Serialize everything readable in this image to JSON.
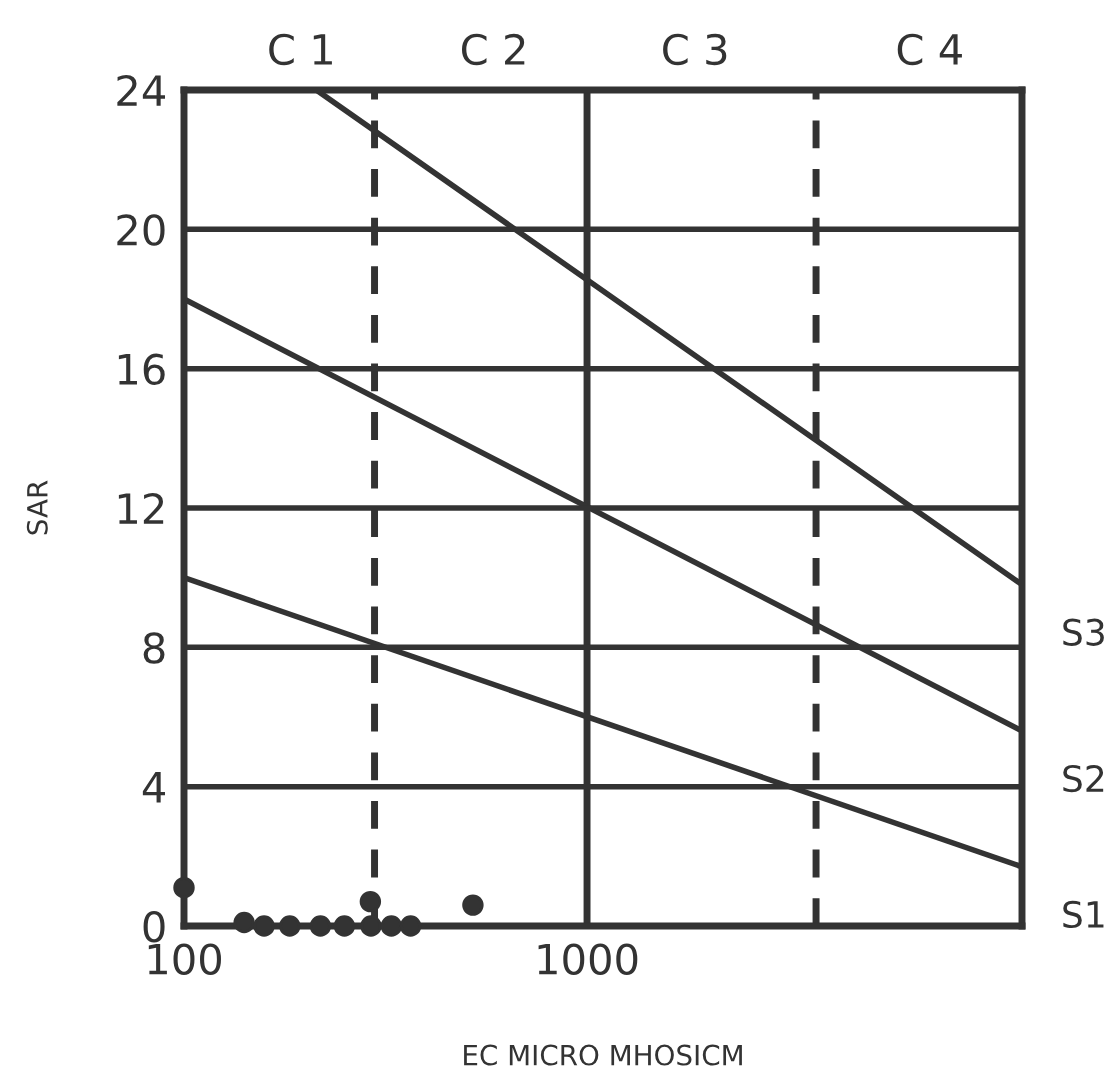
{
  "chart_data": {
    "type": "line",
    "xlabel": "EC MICRO MHOSICM",
    "ylabel": "SAR",
    "log": "x",
    "xlim": [
      100,
      12000
    ],
    "xticks": [
      100,
      1000
    ],
    "ylim": [
      0,
      24
    ],
    "yticks": [
      0,
      4,
      8,
      12,
      16,
      20,
      24
    ],
    "grid": "y",
    "legend": false,
    "marker": "none",
    "line_style": "solid",
    "annotations": [
      "C 1",
      "C 2",
      "C 3",
      "C 4"
    ],
    "series": [
      {
        "name": "S3",
        "color": "#333333",
        "x": [
          213,
          12000
        ],
        "values": [
          24,
          9.8
        ]
      },
      {
        "name": "S2",
        "color": "#333333",
        "x": [
          100,
          12000
        ],
        "values": [
          18,
          5.6
        ]
      },
      {
        "name": "S1",
        "color": "#333333",
        "x": [
          100,
          12000
        ],
        "values": [
          10,
          1.7
        ]
      },
      {
        "type": "scatter",
        "marker": "circle",
        "color": "#333333",
        "x": [
          100,
          141,
          158,
          183,
          218,
          250,
          291,
          327,
          365,
          290,
          521
        ],
        "values": [
          1.1,
          0.1,
          0,
          0,
          0,
          0,
          0,
          0,
          0,
          0.7,
          0.6
        ]
      }
    ],
    "ref_lines": [
      {
        "axis": "x",
        "value": 297,
        "line_style": "dashed",
        "color": "#333333"
      },
      {
        "axis": "x",
        "value": 1000,
        "line_style": "solid",
        "color": "#333333"
      },
      {
        "axis": "x",
        "value": 3700,
        "line_style": "dashed",
        "color": "#333333"
      }
    ]
  }
}
